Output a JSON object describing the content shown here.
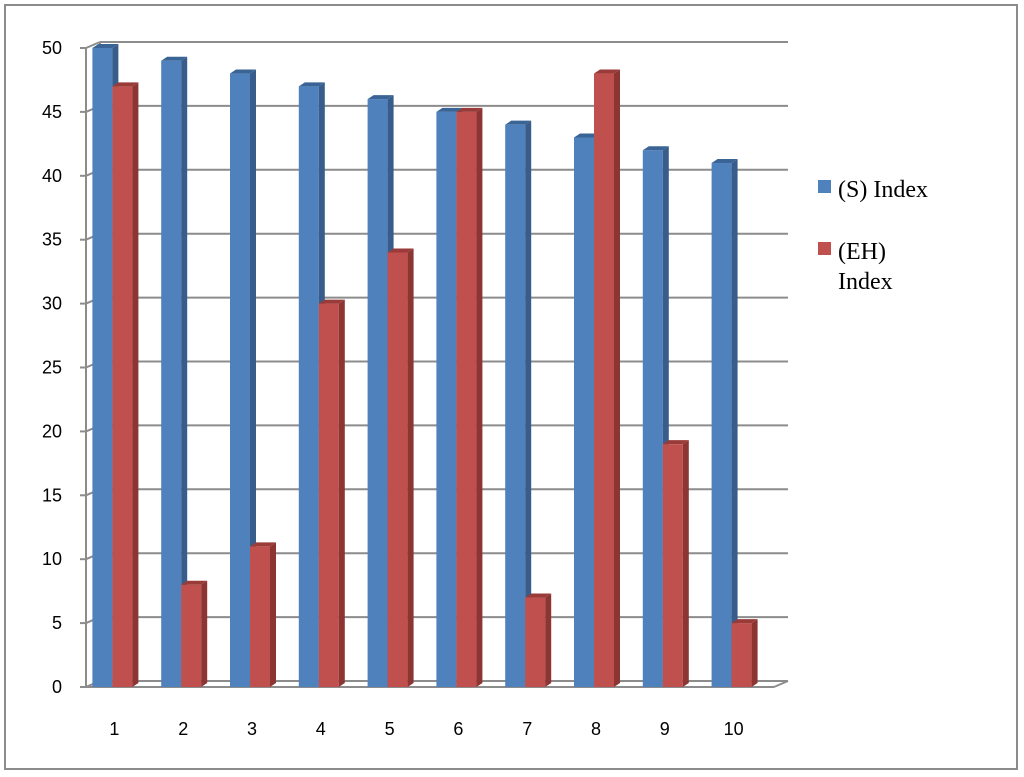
{
  "chart_data": {
    "type": "bar",
    "style": "3d-clustered-column",
    "categories": [
      "1",
      "2",
      "3",
      "4",
      "5",
      "6",
      "7",
      "8",
      "9",
      "10"
    ],
    "series": [
      {
        "name": "(S) Index",
        "values": [
          50,
          49,
          48,
          47,
          46,
          45,
          44,
          43,
          42,
          41
        ],
        "color": "#4f81bd",
        "side_color": "#385d8a",
        "top_color": "#3a6496"
      },
      {
        "name": "(EH) Index",
        "values": [
          47,
          8,
          11,
          30,
          34,
          45,
          7,
          48,
          19,
          5
        ],
        "color": "#c0504d",
        "side_color": "#8c3533",
        "top_color": "#9a3b39"
      }
    ],
    "xlabel": "",
    "ylabel": "",
    "ylim": [
      0,
      50
    ],
    "yticks": [
      "0",
      "5",
      "10",
      "15",
      "20",
      "25",
      "30",
      "35",
      "40",
      "45",
      "50"
    ],
    "grid": true,
    "legend": {
      "position": "right",
      "entries": [
        {
          "lines": [
            "(S) Index"
          ],
          "color": "#4f81bd"
        },
        {
          "lines": [
            "(EH)",
            "Index"
          ],
          "color": "#c0504d"
        }
      ]
    }
  }
}
